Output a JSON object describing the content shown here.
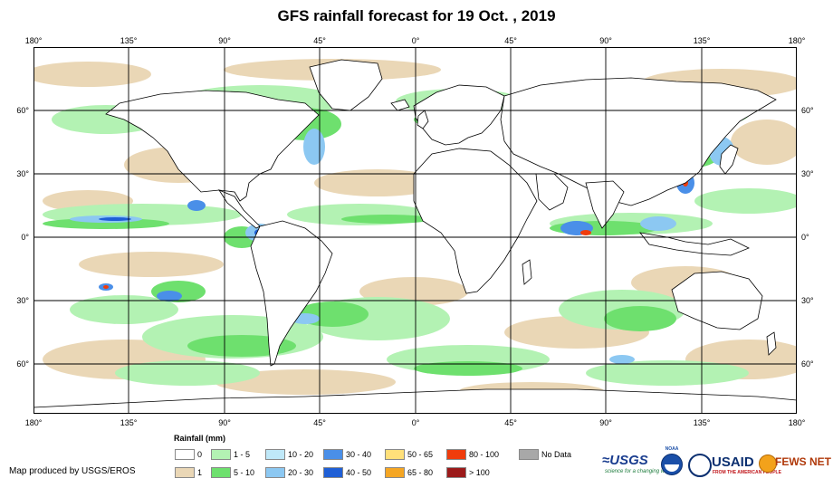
{
  "title": "GFS rainfall forecast for 19 Oct. , 2019",
  "axes": {
    "longitude_labels": [
      "180°",
      "135°",
      "90°",
      "45°",
      "0°",
      "45°",
      "90°",
      "135°",
      "180°"
    ],
    "latitude_labels": [
      "60°",
      "30°",
      "0°",
      "30°",
      "60°"
    ]
  },
  "legend": {
    "title": "Rainfall (mm)",
    "items": [
      {
        "label": "0",
        "color": "#ffffff"
      },
      {
        "label": "1",
        "color": "#ead7b6"
      },
      {
        "label": "1 - 5",
        "color": "#b3f2b3"
      },
      {
        "label": "5 - 10",
        "color": "#6ee06e"
      },
      {
        "label": "10 - 20",
        "color": "#bfe8f8"
      },
      {
        "label": "20 - 30",
        "color": "#8cc8f2"
      },
      {
        "label": "30 - 40",
        "color": "#4a8fe8"
      },
      {
        "label": "40 - 50",
        "color": "#1f5fd6"
      },
      {
        "label": "50 - 65",
        "color": "#ffe07a"
      },
      {
        "label": "65 - 80",
        "color": "#f5a623"
      },
      {
        "label": "80 - 100",
        "color": "#f03c0c"
      },
      {
        "label": "> 100",
        "color": "#9c1a1a"
      },
      {
        "label": "No Data",
        "color": "#a8a8a8"
      }
    ]
  },
  "credit": "Map produced by USGS/EROS",
  "logos": {
    "usgs": "≈USGS",
    "usgs_tagline": "science for a changing world",
    "noaa": "NOAA",
    "usaid": "USAID",
    "usaid_tagline": "FROM THE AMERICAN PEOPLE",
    "fews": "FEWS NET"
  },
  "colors": {
    "land_outline": "#000000",
    "grid": "#000000",
    "tan": "#ead7b6",
    "lightgreen": "#b3f2b3",
    "green": "#6ee06e",
    "lightblue": "#bfe8f8",
    "blue": "#4a8fe8",
    "darkblue": "#1f5fd6",
    "red": "#f03c0c"
  }
}
